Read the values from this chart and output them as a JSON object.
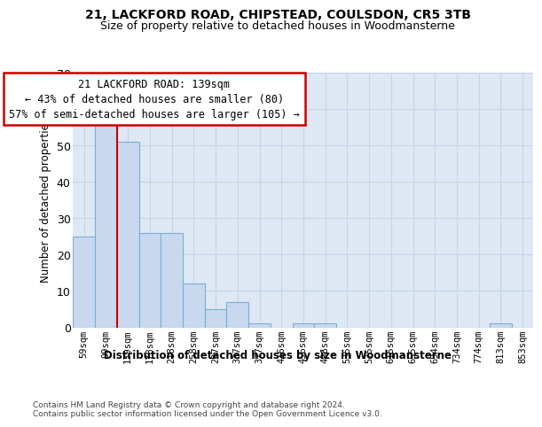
{
  "title1": "21, LACKFORD ROAD, CHIPSTEAD, COULSDON, CR5 3TB",
  "title2": "Size of property relative to detached houses in Woodmansterne",
  "xlabel": "Distribution of detached houses by size in Woodmansterne",
  "ylabel": "Number of detached properties",
  "categories": [
    "59sqm",
    "99sqm",
    "139sqm",
    "178sqm",
    "218sqm",
    "258sqm",
    "297sqm",
    "337sqm",
    "377sqm",
    "416sqm",
    "456sqm",
    "496sqm",
    "535sqm",
    "575sqm",
    "615sqm",
    "655sqm",
    "694sqm",
    "734sqm",
    "774sqm",
    "813sqm",
    "853sqm"
  ],
  "values": [
    25,
    57,
    51,
    26,
    26,
    12,
    5,
    7,
    1,
    0,
    1,
    1,
    0,
    0,
    0,
    0,
    0,
    0,
    0,
    1,
    0
  ],
  "bar_color": "#c8d8ee",
  "bar_edge_color": "#7bafd4",
  "red_line_color": "#cc0000",
  "ylim": [
    0,
    70
  ],
  "yticks": [
    0,
    10,
    20,
    30,
    40,
    50,
    60,
    70
  ],
  "grid_color": "#c8d4e4",
  "bg_color": "#dde8f4",
  "annotation_line1": "21 LACKFORD ROAD: 139sqm",
  "annotation_line2": "← 43% of detached houses are smaller (80)",
  "annotation_line3": "57% of semi-detached houses are larger (105) →",
  "annotation_box_facecolor": "#ffffff",
  "annotation_box_edgecolor": "#cc0000",
  "footer1": "Contains HM Land Registry data © Crown copyright and database right 2024.",
  "footer2": "Contains public sector information licensed under the Open Government Licence v3.0."
}
